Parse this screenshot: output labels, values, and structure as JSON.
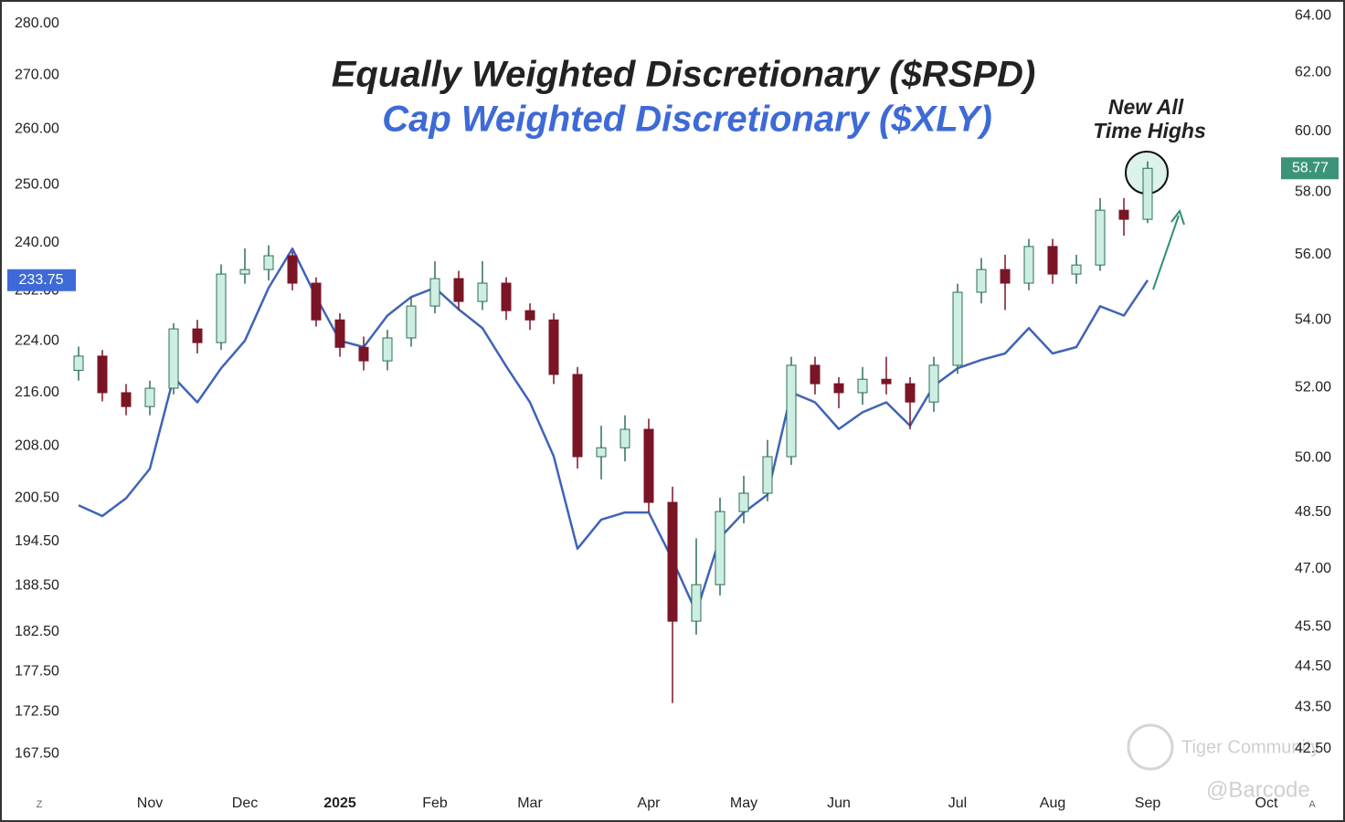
{
  "chart_data": {
    "type": "candlestick",
    "title": "Equally Weighted Discretionary ($RSPD)",
    "subtitle": "Cap Weighted Discretionary ($XLY)",
    "annotation": [
      "New All",
      "Time Highs"
    ],
    "last_price_labels": {
      "y": "233.75",
      "y2": "58.77"
    },
    "watermarks": [
      "Tiger Community",
      "@Barcode"
    ],
    "corner_labels": [
      "Z",
      "A"
    ],
    "categories": [
      null,
      null,
      null,
      "Nov",
      null,
      null,
      null,
      "Dec",
      null,
      null,
      null,
      "2025",
      null,
      null,
      null,
      "Feb",
      null,
      null,
      null,
      "Mar",
      null,
      null,
      null,
      null,
      "Apr",
      null,
      null,
      null,
      "May",
      null,
      null,
      null,
      "Jun",
      null,
      null,
      null,
      null,
      "Jul",
      null,
      null,
      null,
      "Aug",
      null,
      null,
      null,
      "Sep",
      null,
      null,
      null,
      null,
      "Oct"
    ],
    "ylog": true,
    "y2log": true,
    "grid": false,
    "ylim": [
      163.8,
      284.7
    ],
    "yticks": [
      {
        "value": 280,
        "label": "280.00"
      },
      {
        "value": 270,
        "label": "270.00"
      },
      {
        "value": 260,
        "label": "260.00"
      },
      {
        "value": 250,
        "label": "250.00"
      },
      {
        "value": 240,
        "label": "240.00"
      },
      {
        "value": 232,
        "label": "232.00"
      },
      {
        "value": 224,
        "label": "224.00"
      },
      {
        "value": 216,
        "label": "216.00"
      },
      {
        "value": 208,
        "label": "208.00"
      },
      {
        "value": 200.5,
        "label": "200.50"
      },
      {
        "value": 194.5,
        "label": "194.50"
      },
      {
        "value": 188.5,
        "label": "188.50"
      },
      {
        "value": 182.5,
        "label": "182.50"
      },
      {
        "value": 177.5,
        "label": "177.50"
      },
      {
        "value": 172.5,
        "label": "172.50"
      },
      {
        "value": 167.5,
        "label": "167.50"
      }
    ],
    "y2lim": [
      41.64,
      64.56
    ],
    "y2ticks": [
      {
        "value": 64,
        "label": "64.00"
      },
      {
        "value": 62,
        "label": "62.00"
      },
      {
        "value": 60,
        "label": "60.00"
      },
      {
        "value": 58,
        "label": "58.00"
      },
      {
        "value": 56,
        "label": "56.00"
      },
      {
        "value": 54,
        "label": "54.00"
      },
      {
        "value": 52,
        "label": "52.00"
      },
      {
        "value": 50,
        "label": "50.00"
      },
      {
        "value": 48.5,
        "label": "48.50"
      },
      {
        "value": 47,
        "label": "47.00"
      },
      {
        "value": 45.5,
        "label": "45.50"
      },
      {
        "value": 44.5,
        "label": "44.50"
      },
      {
        "value": 43.5,
        "label": "43.50"
      },
      {
        "value": 42.5,
        "label": "42.50"
      }
    ],
    "series": [
      {
        "type": "line",
        "axis": "y",
        "color": "#3f63b8",
        "values": [
          199.5,
          198,
          200.5,
          204.7,
          218.3,
          214.5,
          219.7,
          224,
          232.5,
          239,
          231,
          224,
          223,
          228,
          231,
          232.5,
          229,
          226,
          220,
          214.5,
          206.5,
          193.5,
          197.5,
          198.5,
          198.5,
          192,
          185,
          195,
          198.5,
          201,
          216,
          214.5,
          210.5,
          213,
          214.5,
          211,
          217,
          219.7,
          221,
          222,
          226,
          222,
          223,
          229.5,
          228,
          233.75,
          null,
          null,
          null,
          null,
          null
        ]
      },
      {
        "type": "candlestick",
        "axis": "y2",
        "up_color": "#cdeee2",
        "up_outline": "#2f6f55",
        "down_color": "#7a1526",
        "open": [
          52.5,
          52.92,
          51.85,
          51.45,
          51.98,
          53.73,
          53.32,
          55.4,
          55.54,
          55.97,
          55.12,
          54,
          53.18,
          52.78,
          53.46,
          54.42,
          55.26,
          54.56,
          55.12,
          54.28,
          54,
          52.38,
          50.03,
          50.28,
          50.8,
          48.77,
          45.64,
          46.58,
          48.52,
          49.02,
          50.03,
          52.65,
          52.11,
          51.85,
          52.24,
          52.11,
          51.58,
          52.65,
          54.84,
          55.54,
          55.12,
          56.26,
          55.4,
          55.68,
          57.41,
          57.12,
          null,
          null,
          null,
          null,
          null
        ],
        "high": [
          53.2,
          53.1,
          52.1,
          52.2,
          53.9,
          54,
          55.7,
          56.2,
          56.3,
          56.1,
          55.3,
          54.2,
          53.5,
          53.7,
          54.7,
          55.8,
          55.5,
          55.8,
          55.3,
          54.5,
          54.2,
          52.6,
          50.9,
          51.2,
          51.1,
          49.2,
          47.8,
          48.9,
          49.5,
          50.5,
          52.9,
          52.9,
          52.3,
          52.6,
          52.9,
          52.3,
          52.9,
          55.1,
          55.9,
          56,
          56.5,
          56.5,
          56,
          57.8,
          57.8,
          59,
          null,
          null,
          null,
          null,
          null
        ],
        "low": [
          52.2,
          51.6,
          51.2,
          51.2,
          51.8,
          53,
          53.1,
          55.1,
          55.2,
          54.9,
          53.8,
          52.9,
          52.5,
          52.5,
          53.2,
          54.2,
          54.3,
          54.3,
          54,
          53.7,
          52.1,
          49.7,
          49.4,
          49.9,
          48.5,
          43.6,
          45.3,
          46.3,
          48.2,
          48.8,
          49.8,
          51.8,
          51.4,
          51.5,
          51.8,
          50.8,
          51.3,
          52.4,
          54.5,
          54.3,
          54.9,
          55.1,
          55.1,
          55.5,
          56.6,
          57,
          null,
          null,
          null,
          null,
          null
        ],
        "close": [
          52.92,
          51.85,
          51.45,
          51.98,
          53.73,
          53.32,
          55.4,
          55.54,
          55.97,
          55.12,
          54,
          53.18,
          52.78,
          53.46,
          54.42,
          55.26,
          54.56,
          55.12,
          54.28,
          54,
          52.38,
          50.03,
          50.28,
          50.8,
          48.77,
          45.64,
          46.58,
          48.52,
          49.02,
          50.03,
          52.65,
          52.11,
          51.85,
          52.24,
          52.11,
          51.58,
          52.65,
          54.84,
          55.54,
          55.12,
          56.26,
          55.4,
          55.68,
          57.41,
          57.12,
          58.77,
          null,
          null,
          null,
          null,
          null
        ]
      }
    ]
  }
}
